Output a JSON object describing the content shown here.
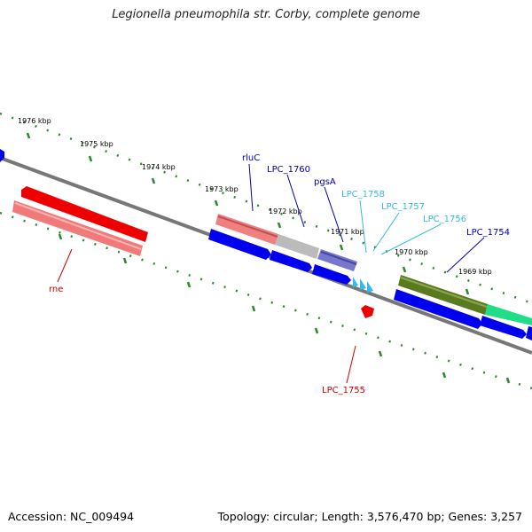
{
  "title": "Legionella pneumophila str. Corby, complete genome",
  "footer": {
    "accession": "Accession: NC_009494",
    "summary": "Topology: circular; Length: 3,576,470 bp; Genes: 3,257"
  },
  "ticks": [
    "1976 kbp",
    "1975 kbp",
    "1974 kbp",
    "1973 kbp",
    "1972 kbp",
    "1971 kbp",
    "1970 kbp",
    "1969 kbp"
  ],
  "genes": [
    {
      "name": "rne",
      "color": "#cc0000"
    },
    {
      "name": "rluC",
      "color": "#0000aa"
    },
    {
      "name": "LPC_1760",
      "color": "#0000aa"
    },
    {
      "name": "pgsA",
      "color": "#0000aa"
    },
    {
      "name": "LPC_1758",
      "color": "#33bbdd"
    },
    {
      "name": "LPC_1757",
      "color": "#33bbdd"
    },
    {
      "name": "LPC_1756",
      "color": "#33bbdd"
    },
    {
      "name": "LPC_1754",
      "color": "#0000aa"
    },
    {
      "name": "LPC_1755",
      "color": "#cc0000"
    }
  ]
}
